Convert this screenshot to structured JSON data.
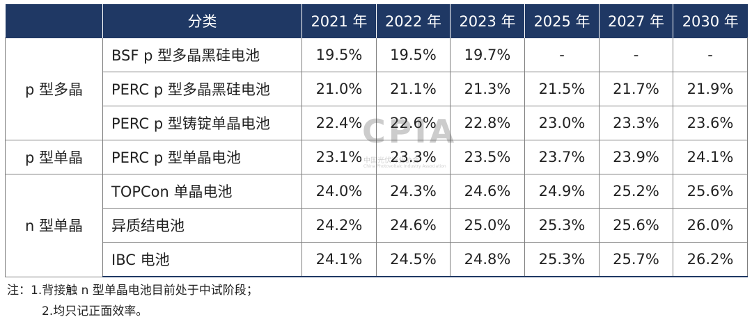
{
  "header": {
    "category": "分类",
    "years": [
      "2021 年",
      "2022 年",
      "2023 年",
      "2025 年",
      "2027 年",
      "2030 年"
    ]
  },
  "groups": [
    {
      "label": "p 型多晶",
      "rows": [
        {
          "name": "BSF p 型多晶黑硅电池",
          "values": [
            "19.5%",
            "19.5%",
            "19.7%",
            "-",
            "-",
            "-"
          ]
        },
        {
          "name": "PERC p 型多晶黑硅电池",
          "values": [
            "21.0%",
            "21.1%",
            "21.3%",
            "21.5%",
            "21.7%",
            "21.9%"
          ]
        },
        {
          "name": "PERC p 型铸锭单晶电池",
          "values": [
            "22.4%",
            "22.6%",
            "22.8%",
            "23.0%",
            "23.3%",
            "23.6%"
          ]
        }
      ]
    },
    {
      "label": "p 型单晶",
      "rows": [
        {
          "name": "PERC p 型单晶电池",
          "values": [
            "23.1%",
            "23.3%",
            "23.5%",
            "23.7%",
            "23.9%",
            "24.1%"
          ]
        }
      ]
    },
    {
      "label": "n 型单晶",
      "rows": [
        {
          "name": "TOPCon 单晶电池",
          "values": [
            "24.0%",
            "24.3%",
            "24.6%",
            "24.9%",
            "25.2%",
            "25.6%"
          ]
        },
        {
          "name": "异质结电池",
          "values": [
            "24.2%",
            "24.6%",
            "25.0%",
            "25.3%",
            "25.6%",
            "26.0%"
          ]
        },
        {
          "name": "IBC 电池",
          "values": [
            "24.1%",
            "24.5%",
            "24.8%",
            "25.3%",
            "25.7%",
            "26.2%"
          ]
        }
      ]
    }
  ],
  "watermark": {
    "logo": "CPIA",
    "line1": "中国光伏行业协会",
    "line2": "China Photovoltaic Industry Association"
  },
  "notes": {
    "line1": "注：1.背接触  n 型单晶电池目前处于中试阶段；",
    "line2": "2.均只记正面效率。"
  }
}
